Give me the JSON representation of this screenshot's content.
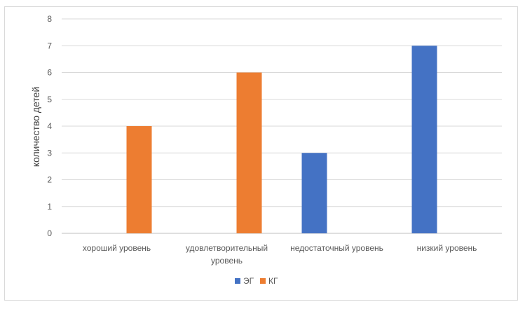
{
  "chart_data": {
    "type": "bar",
    "title": "",
    "xlabel": "",
    "ylabel": "количество детей",
    "ylim": [
      0,
      8
    ],
    "yticks": [
      0,
      1,
      2,
      3,
      4,
      5,
      6,
      7,
      8
    ],
    "grid": true,
    "legend_position": "bottom",
    "categories": [
      [
        "хороший уровень"
      ],
      [
        "удовлетворительный",
        "уровень"
      ],
      [
        "недостаточный уровень"
      ],
      [
        "низкий уровень"
      ]
    ],
    "series": [
      {
        "name": "ЭГ",
        "color": "#4472c4",
        "values": [
          0,
          0,
          3,
          7
        ]
      },
      {
        "name": "КГ",
        "color": "#ed7d31",
        "values": [
          4,
          6,
          0,
          0
        ]
      }
    ]
  }
}
